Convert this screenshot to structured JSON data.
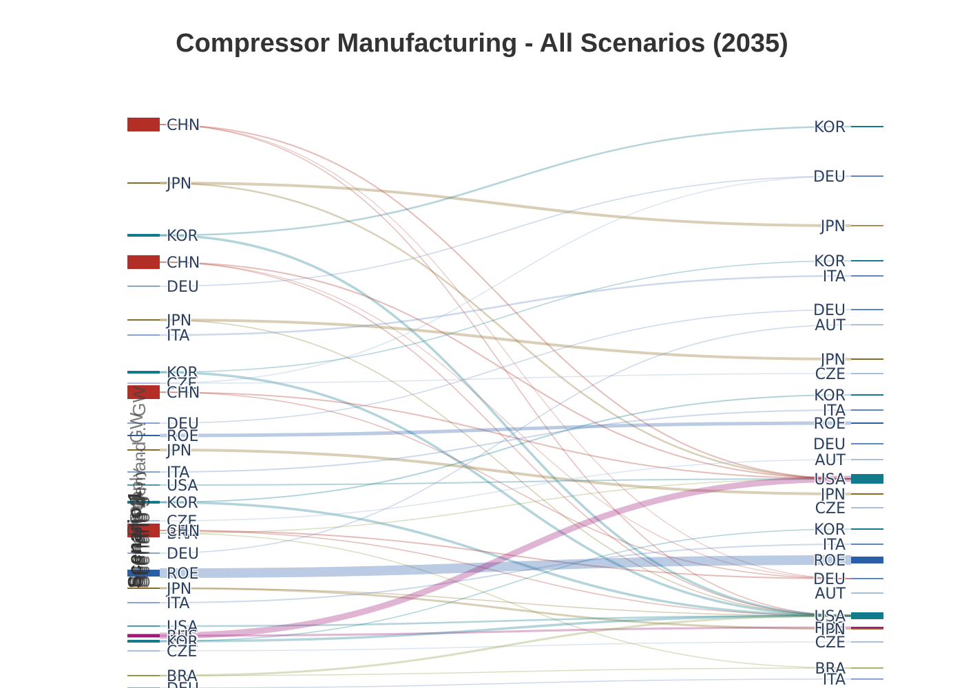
{
  "chart_data": {
    "type": "sankey",
    "title": "Compressor Manufacturing - All Scenarios (2035)",
    "colors": {
      "CHN": "#b22e26",
      "JPN": "#8a6a1e",
      "KOR": "#117a8b",
      "DEU": "#5f86c2",
      "ITA": "#5f86c2",
      "ROE": "#2a5ea9",
      "USA": "#117a8b",
      "CZE": "#8eaad1",
      "BRA": "#8a9a3e",
      "AUT": "#8eaad1",
      "RUS": "#a0197a"
    },
    "groups": [
      {
        "label": "Scenario 1",
        "total": ""
      },
      {
        "label": "Scenario 2",
        "total": ""
      },
      {
        "label": "Scenario 3",
        "total": ""
      },
      {
        "label": "Scenario 4",
        "total": ""
      },
      {
        "label": "Scenario 5",
        "total": ""
      }
    ],
    "side_labels": [
      "Scen...",
      "Supply ... GW",
      "Demand ... GW"
    ],
    "sources": [
      {
        "label": "CHN",
        "y": 181,
        "h": 20
      },
      {
        "label": "JPN",
        "y": 266,
        "h": 2
      },
      {
        "label": "KOR",
        "y": 342,
        "h": 4
      },
      {
        "label": "CHN",
        "y": 381,
        "h": 20
      },
      {
        "label": "DEU",
        "y": 416,
        "h": 1
      },
      {
        "label": "JPN",
        "y": 465,
        "h": 2
      },
      {
        "label": "ITA",
        "y": 487,
        "h": 1
      },
      {
        "label": "KOR",
        "y": 541,
        "h": 4
      },
      {
        "label": "CZE",
        "y": 557,
        "h": 1
      },
      {
        "label": "CHN",
        "y": 570,
        "h": 20
      },
      {
        "label": "DEU",
        "y": 615,
        "h": 1
      },
      {
        "label": "ROE",
        "y": 633,
        "h": 2
      },
      {
        "label": "JPN",
        "y": 654,
        "h": 2
      },
      {
        "label": "ITA",
        "y": 686,
        "h": 1
      },
      {
        "label": "USA",
        "y": 705,
        "h": 1
      },
      {
        "label": "KOR",
        "y": 730,
        "h": 4
      },
      {
        "label": "CZE",
        "y": 757,
        "h": 1
      },
      {
        "label": "BRA",
        "y": 775,
        "h": 1
      },
      {
        "label": "CHN",
        "y": 771,
        "h": 20
      },
      {
        "label": "DEU",
        "y": 804,
        "h": 1
      },
      {
        "label": "ROE",
        "y": 833,
        "h": 10
      },
      {
        "label": "JPN",
        "y": 855,
        "h": 2
      },
      {
        "label": "ITA",
        "y": 876,
        "h": 1
      },
      {
        "label": "USA",
        "y": 910,
        "h": 1
      },
      {
        "label": "RUS",
        "y": 924,
        "h": 5
      },
      {
        "label": "KOR",
        "y": 932,
        "h": 4
      },
      {
        "label": "CZE",
        "y": 946,
        "h": 1
      },
      {
        "label": "BRA",
        "y": 982,
        "h": 2
      },
      {
        "label": "DEU",
        "y": 1000,
        "h": 1
      }
    ],
    "targets": [
      {
        "label": "KOR",
        "y": 184,
        "h": 2
      },
      {
        "label": "DEU",
        "y": 256,
        "h": 2
      },
      {
        "label": "JPN",
        "y": 328,
        "h": 1
      },
      {
        "label": "KOR",
        "y": 379,
        "h": 2
      },
      {
        "label": "ITA",
        "y": 401,
        "h": 2
      },
      {
        "label": "DEU",
        "y": 450,
        "h": 2
      },
      {
        "label": "AUT",
        "y": 472,
        "h": 1
      },
      {
        "label": "JPN",
        "y": 522,
        "h": 2
      },
      {
        "label": "CZE",
        "y": 543,
        "h": 1
      },
      {
        "label": "KOR",
        "y": 574,
        "h": 2
      },
      {
        "label": "ITA",
        "y": 596,
        "h": 2
      },
      {
        "label": "ROE",
        "y": 615,
        "h": 2
      },
      {
        "label": "DEU",
        "y": 645,
        "h": 2
      },
      {
        "label": "AUT",
        "y": 668,
        "h": 1
      },
      {
        "label": "USA",
        "y": 696,
        "h": 14
      },
      {
        "label": "JPN",
        "y": 718,
        "h": 2
      },
      {
        "label": "CZE",
        "y": 738,
        "h": 1
      },
      {
        "label": "KOR",
        "y": 769,
        "h": 2
      },
      {
        "label": "ITA",
        "y": 791,
        "h": 2
      },
      {
        "label": "ROE",
        "y": 814,
        "h": 10
      },
      {
        "label": "DEU",
        "y": 841,
        "h": 2
      },
      {
        "label": "AUT",
        "y": 862,
        "h": 1
      },
      {
        "label": "USA",
        "y": 895,
        "h": 10
      },
      {
        "label": "RUS",
        "y": 912,
        "h": 2
      },
      {
        "label": "JPN",
        "y": 914,
        "h": 2
      },
      {
        "label": "CZE",
        "y": 933,
        "h": 1
      },
      {
        "label": "BRA",
        "y": 971,
        "h": 1
      },
      {
        "label": "ITA",
        "y": 987,
        "h": 1
      }
    ],
    "flows": [
      {
        "s": 0,
        "t": 14,
        "w": 2
      },
      {
        "s": 0,
        "t": 22,
        "w": 1.5
      },
      {
        "s": 0,
        "t": 20,
        "w": 1
      },
      {
        "s": 1,
        "t": 2,
        "w": 4
      },
      {
        "s": 1,
        "t": 14,
        "w": 2.5
      },
      {
        "s": 2,
        "t": 0,
        "w": 2.5
      },
      {
        "s": 2,
        "t": 22,
        "w": 3.5
      },
      {
        "s": 3,
        "t": 14,
        "w": 2
      },
      {
        "s": 3,
        "t": 22,
        "w": 1.5
      },
      {
        "s": 3,
        "t": 20,
        "w": 1
      },
      {
        "s": 4,
        "t": 1,
        "w": 1.5
      },
      {
        "s": 5,
        "t": 7,
        "w": 4
      },
      {
        "s": 5,
        "t": 22,
        "w": 1.5
      },
      {
        "s": 6,
        "t": 4,
        "w": 2.5
      },
      {
        "s": 7,
        "t": 3,
        "w": 1.5
      },
      {
        "s": 7,
        "t": 22,
        "w": 3.5
      },
      {
        "s": 8,
        "t": 8,
        "w": 1.5
      },
      {
        "s": 8,
        "t": 1,
        "w": 1.5
      },
      {
        "s": 9,
        "t": 14,
        "w": 2
      },
      {
        "s": 9,
        "t": 20,
        "w": 1.5
      },
      {
        "s": 10,
        "t": 5,
        "w": 1.5
      },
      {
        "s": 11,
        "t": 11,
        "w": 5
      },
      {
        "s": 12,
        "t": 15,
        "w": 4
      },
      {
        "s": 13,
        "t": 10,
        "w": 2
      },
      {
        "s": 14,
        "t": 14,
        "w": 2
      },
      {
        "s": 15,
        "t": 9,
        "w": 2
      },
      {
        "s": 15,
        "t": 22,
        "w": 3.5
      },
      {
        "s": 16,
        "t": 13,
        "w": 1.5
      },
      {
        "s": 17,
        "t": 14,
        "w": 1.5
      },
      {
        "s": 17,
        "t": 26,
        "w": 1.5
      },
      {
        "s": 18,
        "t": 20,
        "w": 2
      },
      {
        "s": 18,
        "t": 22,
        "w": 1.5
      },
      {
        "s": 19,
        "t": 6,
        "w": 1.5
      },
      {
        "s": 20,
        "t": 19,
        "w": 14
      },
      {
        "s": 21,
        "t": 24,
        "w": 3
      },
      {
        "s": 21,
        "t": 22,
        "w": 1.5
      },
      {
        "s": 22,
        "t": 18,
        "w": 2
      },
      {
        "s": 23,
        "t": 22,
        "w": 2.5
      },
      {
        "s": 24,
        "t": 14,
        "w": 9
      },
      {
        "s": 24,
        "t": 23,
        "w": 3
      },
      {
        "s": 25,
        "t": 22,
        "w": 3.5
      },
      {
        "s": 25,
        "t": 17,
        "w": 1.5
      },
      {
        "s": 26,
        "t": 25,
        "w": 1.5
      },
      {
        "s": 27,
        "t": 22,
        "w": 3
      },
      {
        "s": 27,
        "t": 26,
        "w": 1.5
      },
      {
        "s": 28,
        "t": 27,
        "w": 1.5
      }
    ]
  }
}
